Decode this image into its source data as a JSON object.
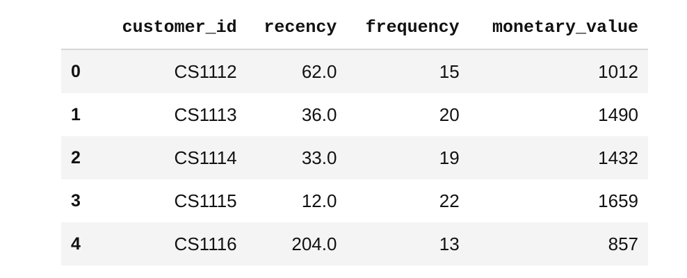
{
  "table": {
    "index_header": "",
    "columns": [
      "customer_id",
      "recency",
      "frequency",
      "monetary_value"
    ],
    "rows": [
      {
        "index": "0",
        "customer_id": "CS1112",
        "recency": "62.0",
        "frequency": "15",
        "monetary_value": "1012"
      },
      {
        "index": "1",
        "customer_id": "CS1113",
        "recency": "36.0",
        "frequency": "20",
        "monetary_value": "1490"
      },
      {
        "index": "2",
        "customer_id": "CS1114",
        "recency": "33.0",
        "frequency": "19",
        "monetary_value": "1432"
      },
      {
        "index": "3",
        "customer_id": "CS1115",
        "recency": "12.0",
        "frequency": "22",
        "monetary_value": "1659"
      },
      {
        "index": "4",
        "customer_id": "CS1116",
        "recency": "204.0",
        "frequency": "13",
        "monetary_value": "857"
      }
    ]
  },
  "colors": {
    "stripe_bg": "#f4f4f4",
    "header_rule": "#d6d6d6",
    "text": "#111111"
  }
}
